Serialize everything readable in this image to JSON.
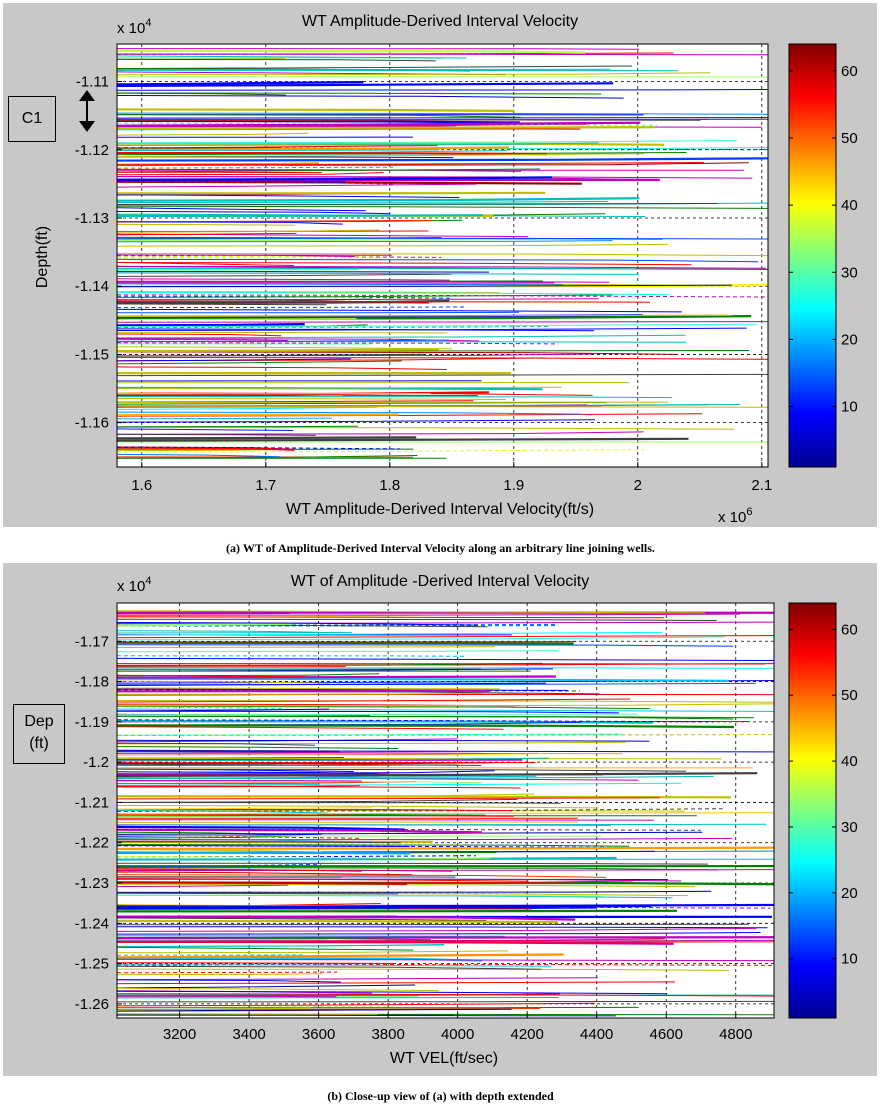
{
  "chart_data": [
    {
      "type": "line",
      "title": "WT Amplitude-Derived Interval Velocity",
      "xlabel": "WT Amplitude-Derived Interval Velocity(ft/s)",
      "ylabel": "Depth(ft)",
      "x_exponent": "x 10",
      "x_exponent_power": "6",
      "y_exponent": "x 10",
      "y_exponent_power": "4",
      "xlim": [
        1.58,
        2.105
      ],
      "ylim": [
        -1.1665,
        -1.1045
      ],
      "x_ticks": [
        1.6,
        1.7,
        1.8,
        1.9,
        2.0,
        2.1
      ],
      "x_tick_labels": [
        "1.6",
        "1.7",
        "1.8",
        "1.9",
        "2",
        "2.1"
      ],
      "y_ticks": [
        -1.11,
        -1.12,
        -1.13,
        -1.14,
        -1.15,
        -1.16
      ],
      "y_tick_labels": [
        "-1.11",
        "-1.12",
        "-1.13",
        "-1.14",
        "-1.15",
        "-1.16"
      ],
      "grid": true,
      "colorbar": {
        "min": 1,
        "max": 64,
        "ticks": [
          10,
          20,
          30,
          40,
          50,
          60
        ],
        "tick_labels": [
          "10",
          "20",
          "30",
          "40",
          "50",
          "60"
        ],
        "colormap": "jet"
      },
      "series_description": "64 wavelet-transform coefficient traces plotted as near-horizontal lines across depth",
      "annotation": "C1",
      "annotation_icon": "double-arrow-vertical-icon",
      "caption": "(a) WT of Amplitude-Derived Interval Velocity along an arbitrary line joining wells."
    },
    {
      "type": "line",
      "title": "WT of Amplitude -Derived Interval Velocity",
      "xlabel": "WT VEL(ft/sec)",
      "ylabel_line1": "Dep",
      "ylabel_line2": "(ft)",
      "y_exponent": "x 10",
      "y_exponent_power": "4",
      "xlim": [
        3020,
        4910
      ],
      "ylim": [
        -1.2635,
        -1.1605
      ],
      "x_ticks": [
        3200,
        3400,
        3600,
        3800,
        4000,
        4200,
        4400,
        4600,
        4800
      ],
      "x_tick_labels": [
        "3200",
        "3400",
        "3600",
        "3800",
        "4000",
        "4200",
        "4400",
        "4600",
        "4800"
      ],
      "y_ticks": [
        -1.17,
        -1.18,
        -1.19,
        -1.2,
        -1.21,
        -1.22,
        -1.23,
        -1.24,
        -1.25,
        -1.26
      ],
      "y_tick_labels": [
        "-1.17",
        "-1.18",
        "-1.19",
        "-1.2",
        "-1.21",
        "-1.22",
        "-1.23",
        "-1.24",
        "-1.25",
        "-1.26"
      ],
      "grid": true,
      "colorbar": {
        "min": 1,
        "max": 64,
        "ticks": [
          10,
          20,
          30,
          40,
          50,
          60
        ],
        "tick_labels": [
          "10",
          "20",
          "30",
          "40",
          "50",
          "60"
        ],
        "colormap": "jet"
      },
      "series_description": "64 wavelet-transform coefficient traces plotted as near-horizontal lines across extended depth",
      "caption": "(b) Close-up view of (a) with depth extended"
    }
  ]
}
